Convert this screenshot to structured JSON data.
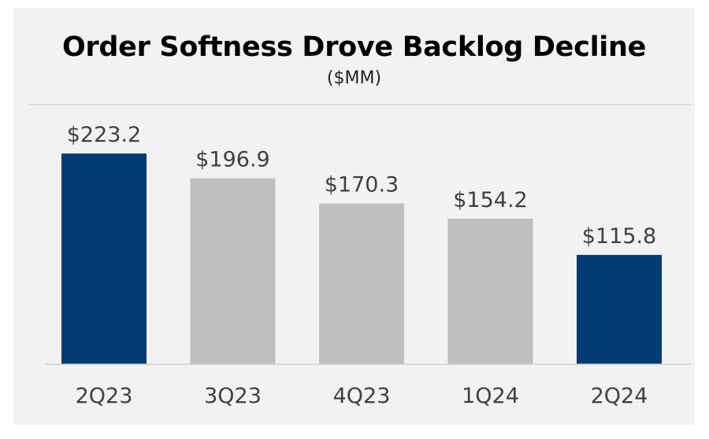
{
  "chart_data": {
    "type": "bar",
    "title": "Order Softness Drove Backlog Decline",
    "subtitle": "($MM)",
    "categories": [
      "2Q23",
      "3Q23",
      "4Q23",
      "1Q24",
      "2Q24"
    ],
    "values": [
      223.2,
      196.9,
      170.3,
      154.2,
      115.8
    ],
    "value_labels": [
      "$223.2",
      "$196.9",
      "$170.3",
      "$154.2",
      "$115.8"
    ],
    "bar_colors": [
      "#003b71",
      "#bfbfbf",
      "#bfbfbf",
      "#bfbfbf",
      "#003b71"
    ],
    "ylim": [
      0,
      275
    ],
    "xlabel": "",
    "ylabel": "",
    "grid": false,
    "legend": "none"
  },
  "colors": {
    "highlight": "#003b71",
    "neutral": "#bfbfbf",
    "background": "#f2f2f2"
  }
}
